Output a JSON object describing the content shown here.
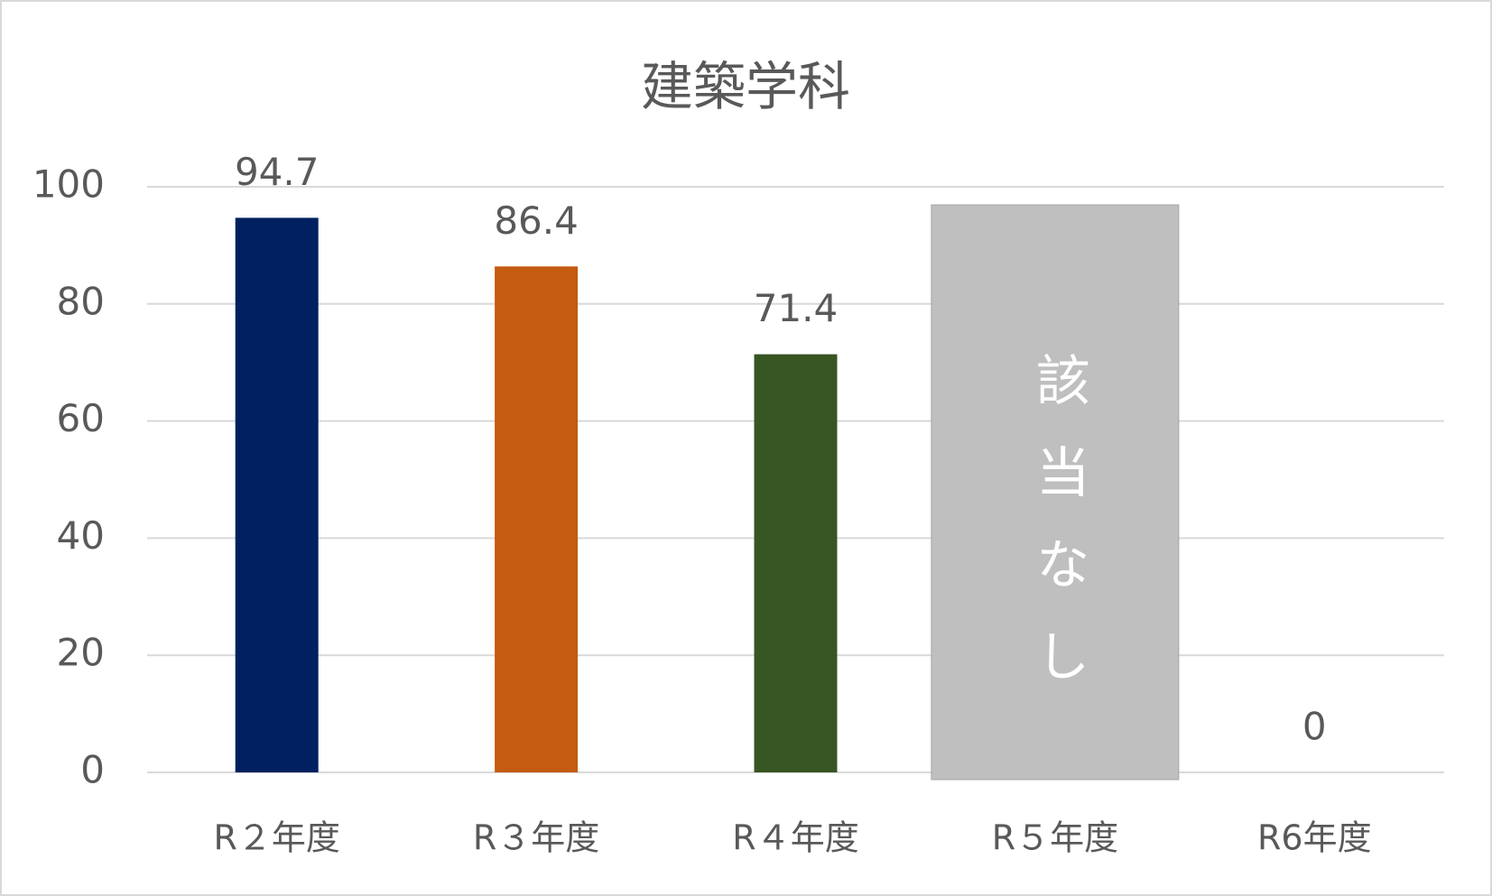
{
  "chart_data": {
    "type": "bar",
    "title": "建築学科",
    "categories": [
      "R２年度",
      "R３年度",
      "R４年度",
      "R５年度",
      "R6年度"
    ],
    "values": [
      94.7,
      86.4,
      71.4,
      null,
      0
    ],
    "colors": [
      "#002060",
      "#c55a11",
      "#375623",
      null,
      null
    ],
    "annotation": "該当なし",
    "ylim": [
      0,
      100
    ],
    "yticks": [
      0,
      20,
      40,
      60,
      80,
      100
    ],
    "grid": true
  }
}
